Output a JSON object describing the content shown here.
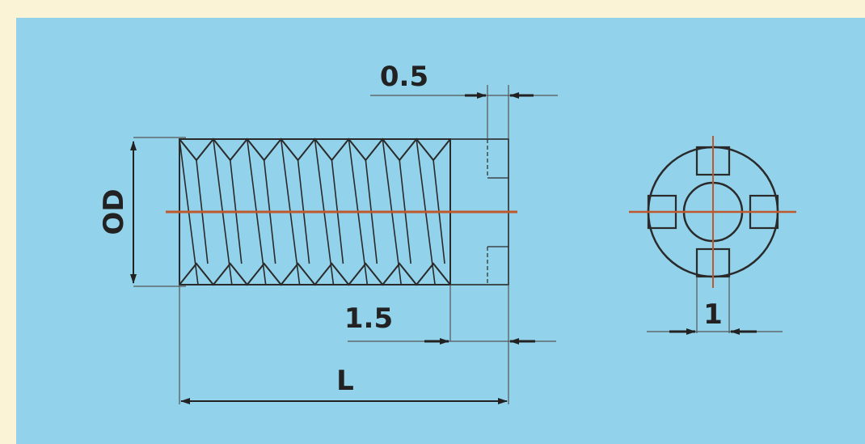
{
  "dimensions": {
    "top_gap": "0.5",
    "outer_diameter": "OD",
    "end_gap": "1.5",
    "length": "L",
    "slot_width": "1"
  },
  "colors": {
    "background": "#fbf3d6",
    "panel": "#92d2ea",
    "outline": "#2a2a2a",
    "centerline": "#c0582e",
    "dimension_line": "#555555"
  }
}
